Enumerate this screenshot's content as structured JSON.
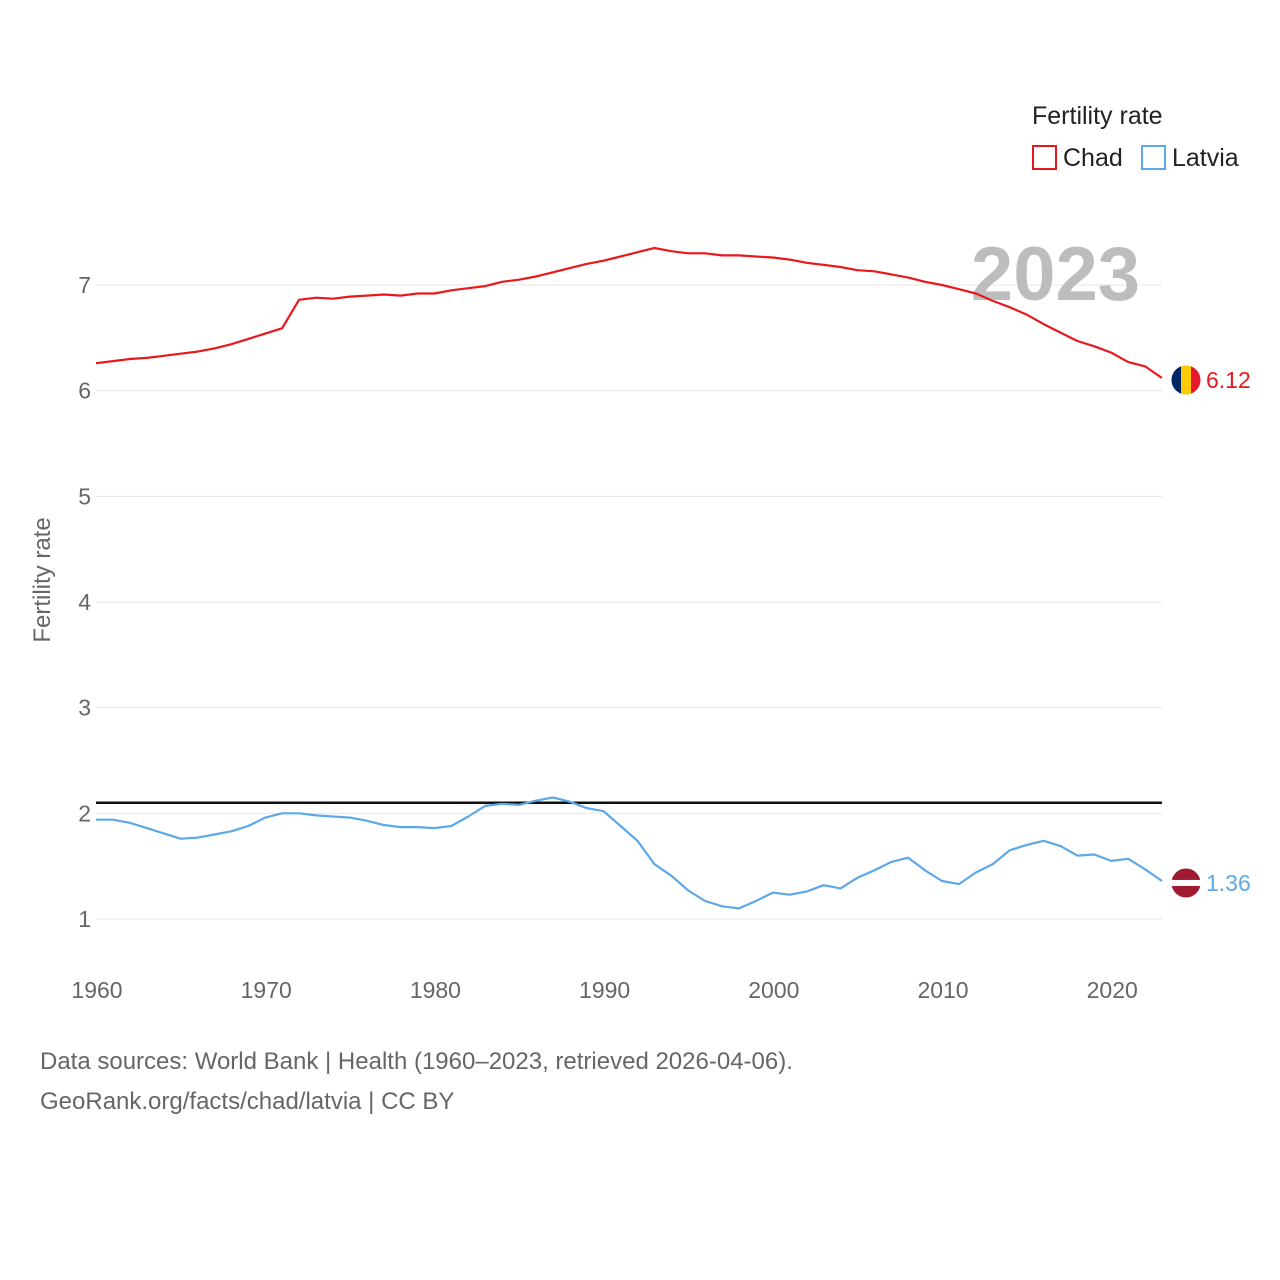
{
  "chart_data": {
    "type": "line",
    "title": "",
    "legend_title": "Fertility rate",
    "ylabel": "Fertility rate",
    "xlabel": "",
    "current_year_label": "2023",
    "xlim": [
      1960,
      2023
    ],
    "ylim": [
      0.55,
      7.8
    ],
    "yticks": [
      1,
      2,
      3,
      4,
      5,
      6,
      7
    ],
    "xticks": [
      1960,
      1970,
      1980,
      1990,
      2000,
      2010,
      2020
    ],
    "legend_position": "top-right",
    "reference_line": {
      "value": 2.1,
      "color": "#111111"
    },
    "grid": true,
    "x": [
      1960,
      1961,
      1962,
      1963,
      1964,
      1965,
      1966,
      1967,
      1968,
      1969,
      1970,
      1971,
      1972,
      1973,
      1974,
      1975,
      1976,
      1977,
      1978,
      1979,
      1980,
      1981,
      1982,
      1983,
      1984,
      1985,
      1986,
      1987,
      1988,
      1989,
      1990,
      1991,
      1992,
      1993,
      1994,
      1995,
      1996,
      1997,
      1998,
      1999,
      2000,
      2001,
      2002,
      2003,
      2004,
      2005,
      2006,
      2007,
      2008,
      2009,
      2010,
      2011,
      2012,
      2013,
      2014,
      2015,
      2016,
      2017,
      2018,
      2019,
      2020,
      2021,
      2022,
      2023
    ],
    "series": [
      {
        "name": "Chad",
        "color": "#e8191c",
        "end_label": "6.12",
        "flag": "chad",
        "values": [
          6.26,
          6.28,
          6.3,
          6.31,
          6.33,
          6.35,
          6.37,
          6.4,
          6.44,
          6.49,
          6.54,
          6.59,
          6.86,
          6.88,
          6.87,
          6.89,
          6.9,
          6.91,
          6.9,
          6.92,
          6.92,
          6.95,
          6.97,
          6.99,
          7.03,
          7.05,
          7.08,
          7.12,
          7.16,
          7.2,
          7.23,
          7.27,
          7.31,
          7.35,
          7.32,
          7.3,
          7.3,
          7.28,
          7.28,
          7.27,
          7.26,
          7.24,
          7.21,
          7.19,
          7.17,
          7.14,
          7.13,
          7.1,
          7.07,
          7.03,
          7.0,
          6.96,
          6.92,
          6.85,
          6.79,
          6.72,
          6.63,
          6.55,
          6.47,
          6.42,
          6.36,
          6.27,
          6.23,
          6.12
        ]
      },
      {
        "name": "Latvia",
        "color": "#5ca8e8",
        "end_label": "1.36",
        "flag": "latvia",
        "values": [
          1.94,
          1.94,
          1.91,
          1.86,
          1.81,
          1.76,
          1.77,
          1.8,
          1.83,
          1.88,
          1.96,
          2.0,
          2.0,
          1.98,
          1.97,
          1.96,
          1.93,
          1.89,
          1.87,
          1.87,
          1.86,
          1.88,
          1.97,
          2.07,
          2.09,
          2.08,
          2.12,
          2.15,
          2.11,
          2.05,
          2.02,
          1.88,
          1.74,
          1.52,
          1.41,
          1.27,
          1.17,
          1.12,
          1.1,
          1.17,
          1.25,
          1.23,
          1.26,
          1.32,
          1.29,
          1.39,
          1.46,
          1.54,
          1.58,
          1.46,
          1.36,
          1.33,
          1.44,
          1.52,
          1.65,
          1.7,
          1.74,
          1.69,
          1.6,
          1.61,
          1.55,
          1.57,
          1.47,
          1.36
        ]
      }
    ]
  },
  "footer": {
    "line1": "Data sources: World Bank | Health (1960–2023, retrieved 2026-04-06).",
    "line2": "GeoRank.org/facts/chad/latvia | CC BY"
  }
}
